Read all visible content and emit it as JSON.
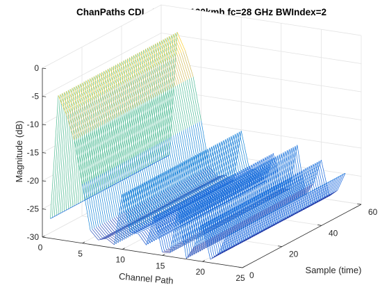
{
  "chart_data": {
    "type": "mesh3d",
    "title": "ChanPaths CDL-A UMI v=120kmh fc=28 GHz BWIndex=2",
    "xlabel": "Channel Path",
    "ylabel": "Sample (time)",
    "zlabel": "Magnitude (dB)",
    "xlim": [
      0,
      25
    ],
    "ylim": [
      0,
      60
    ],
    "zlim": [
      -30,
      0
    ],
    "xticks": [
      "0",
      "5",
      "10",
      "15",
      "20",
      "25"
    ],
    "yticks": [
      "0",
      "20",
      "40",
      "60"
    ],
    "zticks": [
      "0",
      "-5",
      "-10",
      "-15",
      "-20",
      "-25",
      "-30"
    ],
    "grid": true,
    "colormap": "parula",
    "color_range": [
      -30,
      0
    ],
    "time_samples": [
      0,
      1,
      2,
      3,
      4,
      5,
      6,
      7,
      8,
      9,
      10,
      11,
      12,
      13,
      14,
      15,
      16,
      17,
      18,
      19,
      20,
      21,
      22,
      23,
      24,
      25,
      26,
      27,
      28,
      29,
      30,
      31,
      32,
      33,
      34,
      35,
      36,
      37,
      38,
      39,
      40,
      41,
      42,
      43,
      44,
      45,
      46,
      47,
      48,
      49,
      50,
      51,
      52,
      53,
      54,
      55,
      56,
      57,
      58,
      59,
      60
    ],
    "paths": [
      1,
      2,
      3,
      4,
      5,
      6,
      7,
      8,
      9,
      10,
      11,
      12,
      13,
      14,
      15,
      16,
      17,
      18,
      19,
      20,
      21,
      22,
      23
    ],
    "magnitude_db": [
      -26.5,
      -4.4,
      -7.5,
      -11.9,
      -19.5,
      -27.5,
      -29.0,
      -28.5,
      -29.4,
      -20.2,
      -26.7,
      -26.8,
      -28.6,
      -23.3,
      -29.4,
      -29.3,
      -21.2,
      -29.9,
      -27.6,
      -23.2,
      -29.4,
      -28.2,
      -24.9
    ]
  }
}
